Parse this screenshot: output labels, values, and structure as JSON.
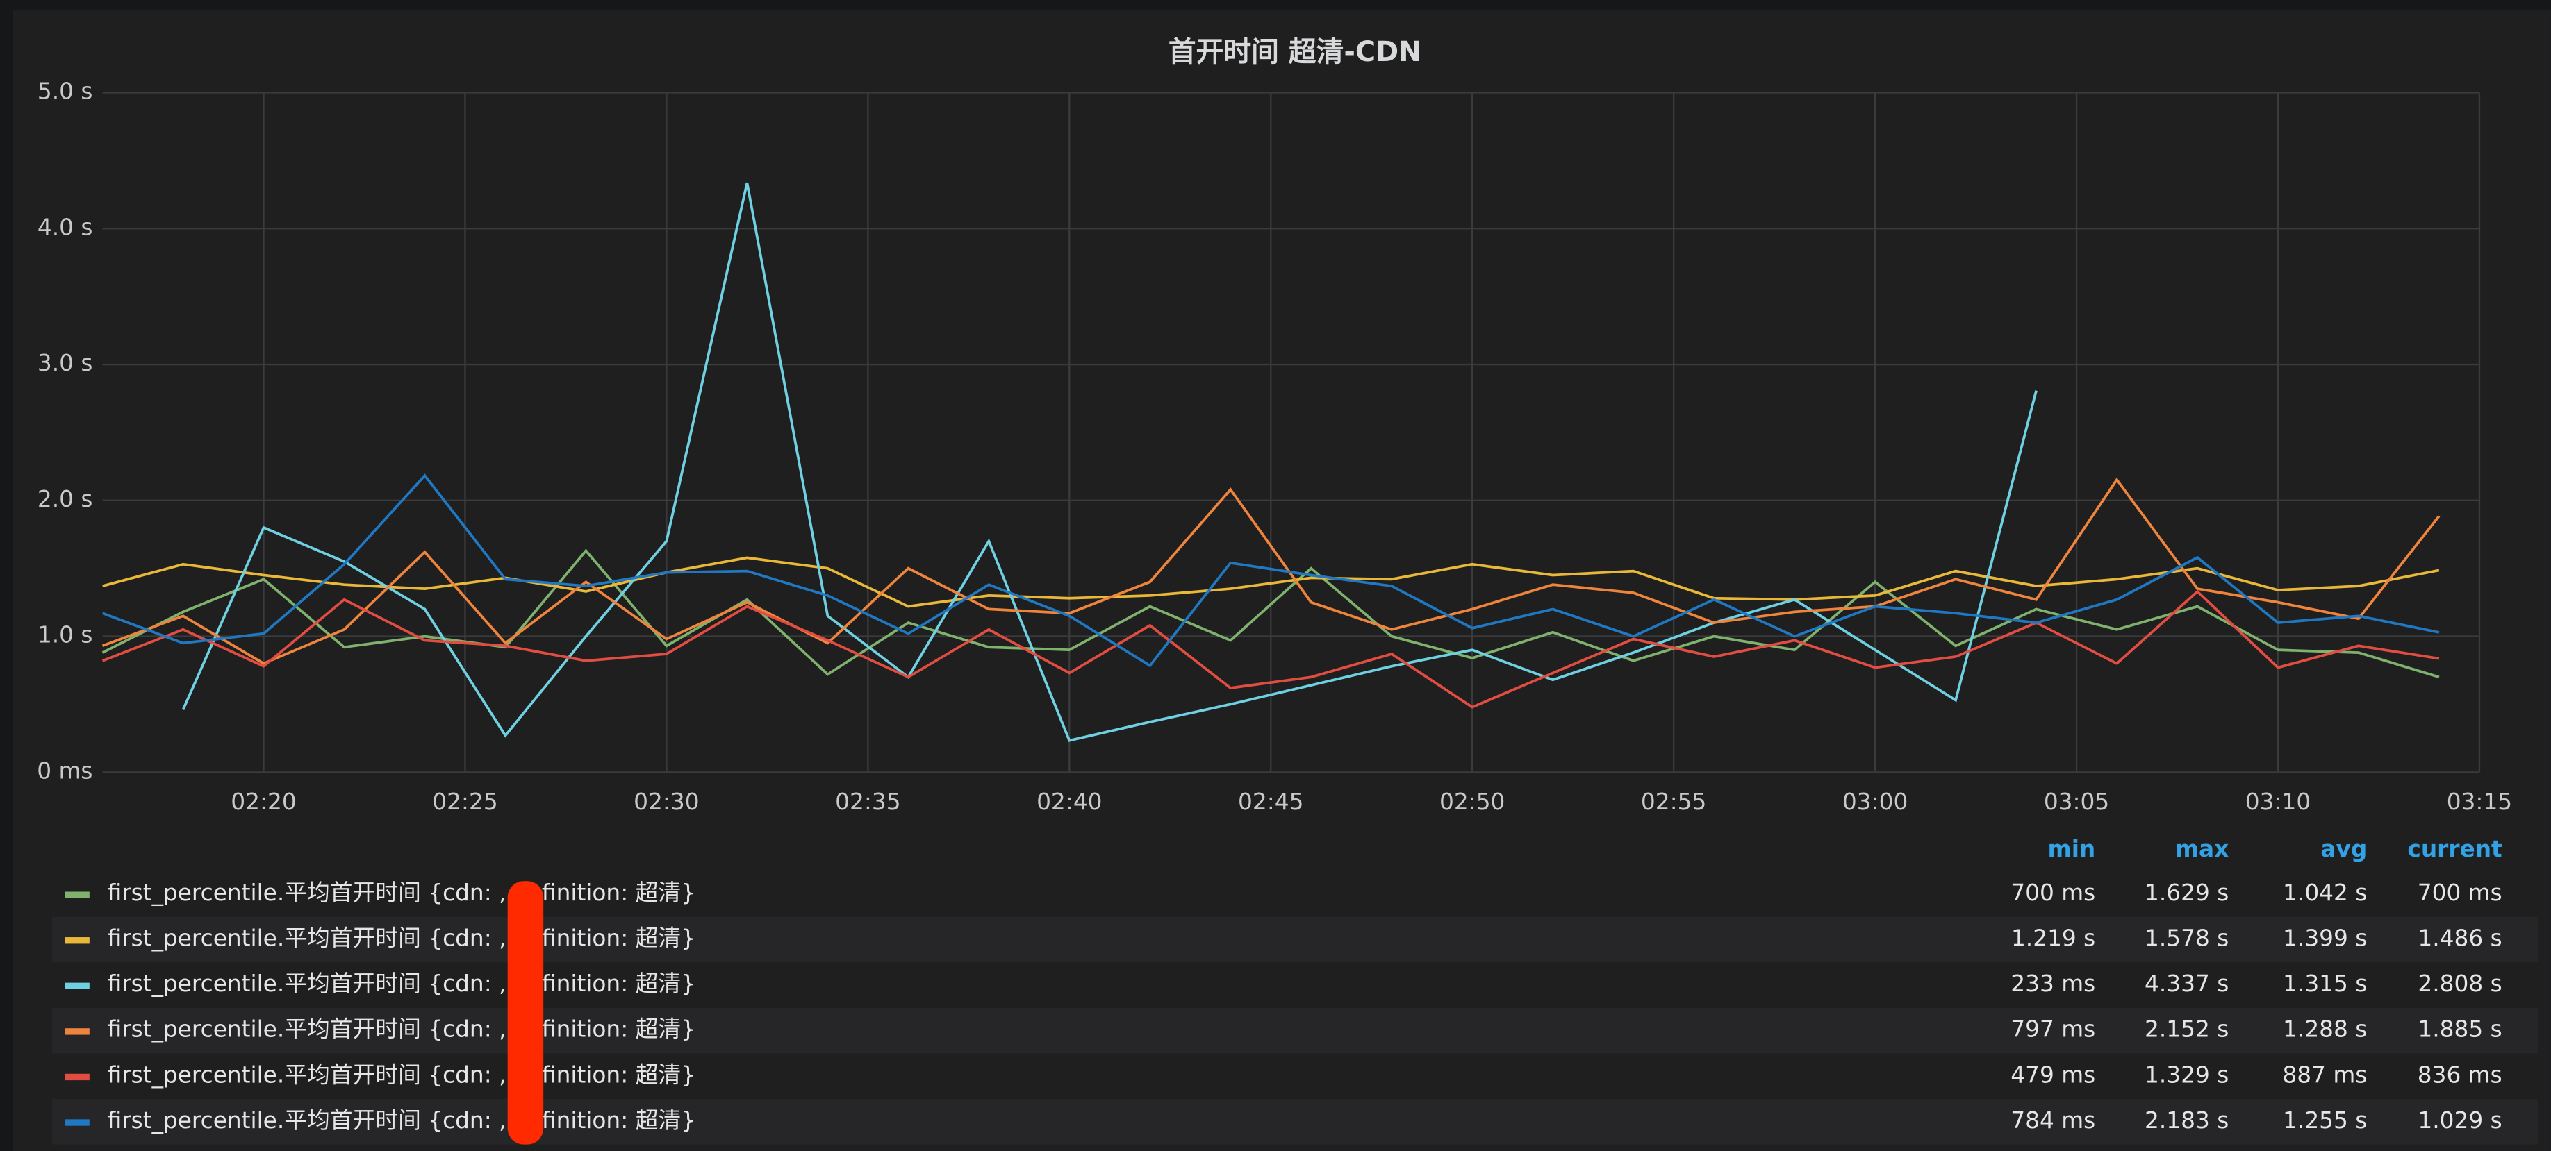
{
  "chart_data": {
    "type": "line",
    "title": "首开时间 超清-CDN",
    "x": [
      "02:16",
      "02:18",
      "02:20",
      "02:22",
      "02:24",
      "02:26",
      "02:28",
      "02:30",
      "02:32",
      "02:34",
      "02:36",
      "02:38",
      "02:40",
      "02:42",
      "02:44",
      "02:46",
      "02:48",
      "02:50",
      "02:52",
      "02:54",
      "02:56",
      "02:58",
      "03:00",
      "03:02",
      "03:04",
      "03:06",
      "03:08",
      "03:10",
      "03:12",
      "03:14"
    ],
    "xlim": [
      "02:16",
      "03:15"
    ],
    "xticks": [
      "02:20",
      "02:25",
      "02:30",
      "02:35",
      "02:40",
      "02:45",
      "02:50",
      "02:55",
      "03:00",
      "03:05",
      "03:10",
      "03:15"
    ],
    "ylim": [
      0,
      5
    ],
    "yticks": [
      {
        "value": 0,
        "label": "0 ms"
      },
      {
        "value": 1,
        "label": "1.0 s"
      },
      {
        "value": 2,
        "label": "2.0 s"
      },
      {
        "value": 3,
        "label": "3.0 s"
      },
      {
        "value": 4,
        "label": "4.0 s"
      },
      {
        "value": 5,
        "label": "5.0 s"
      }
    ],
    "grid": true,
    "series": [
      {
        "name": "first_percentile.平均首开时间 {cdn: , definition: 超清}",
        "color": "#7eb26d",
        "values": [
          0.88,
          1.18,
          1.42,
          0.92,
          1.0,
          0.92,
          1.63,
          0.93,
          1.27,
          0.72,
          1.1,
          0.92,
          0.9,
          1.22,
          0.97,
          1.5,
          1.0,
          0.84,
          1.03,
          0.82,
          1.0,
          0.9,
          1.4,
          0.93,
          1.2,
          1.05,
          1.22,
          0.9,
          0.88,
          0.7
        ]
      },
      {
        "name": "first_percentile.平均首开时间 {cdn: , definition: 超清}",
        "color": "#eab839",
        "values": [
          1.37,
          1.53,
          1.45,
          1.38,
          1.35,
          1.43,
          1.33,
          1.47,
          1.578,
          1.5,
          1.22,
          1.3,
          1.28,
          1.3,
          1.35,
          1.43,
          1.42,
          1.53,
          1.45,
          1.48,
          1.28,
          1.27,
          1.3,
          1.48,
          1.37,
          1.42,
          1.5,
          1.34,
          1.37,
          1.486
        ]
      },
      {
        "name": "first_percentile.平均首开时间 {cdn: , definition: 超清}",
        "color": "#6ed0e0",
        "values": [
          null,
          0.46,
          1.8,
          1.55,
          1.2,
          0.27,
          1.0,
          1.7,
          4.337,
          1.15,
          0.7,
          1.7,
          0.233,
          0.37,
          0.5,
          0.64,
          0.78,
          0.9,
          0.68,
          0.88,
          1.1,
          1.27,
          0.9,
          0.53,
          2.808,
          null,
          null,
          null,
          null,
          null
        ]
      },
      {
        "name": "first_percentile.平均首开时间 {cdn: , definition: 超清}",
        "color": "#ef843c",
        "values": [
          0.93,
          1.15,
          0.8,
          1.05,
          1.62,
          0.95,
          1.4,
          0.98,
          1.25,
          0.95,
          1.5,
          1.2,
          1.17,
          1.4,
          2.08,
          1.25,
          1.05,
          1.2,
          1.38,
          1.32,
          1.1,
          1.18,
          1.22,
          1.42,
          1.27,
          2.152,
          1.35,
          1.25,
          1.13,
          1.885
        ]
      },
      {
        "name": "first_percentile.平均首开时间 {cdn: , definition: 超清}",
        "color": "#e24d42",
        "values": [
          0.82,
          1.05,
          0.78,
          1.27,
          0.97,
          0.93,
          0.82,
          0.87,
          1.22,
          0.97,
          0.7,
          1.05,
          0.73,
          1.08,
          0.62,
          0.7,
          0.87,
          0.479,
          0.73,
          0.98,
          0.85,
          0.97,
          0.77,
          0.85,
          1.1,
          0.8,
          1.329,
          0.77,
          0.93,
          0.836
        ]
      },
      {
        "name": "first_percentile.平均首开时间 {cdn: , definition: 超清}",
        "color": "#1f78c1",
        "values": [
          1.17,
          0.95,
          1.02,
          1.53,
          2.183,
          1.42,
          1.37,
          1.47,
          1.48,
          1.3,
          1.02,
          1.38,
          1.15,
          0.784,
          1.54,
          1.45,
          1.37,
          1.06,
          1.2,
          1.0,
          1.27,
          1.0,
          1.22,
          1.17,
          1.1,
          1.27,
          1.58,
          1.1,
          1.15,
          1.029
        ]
      }
    ],
    "legend": {
      "headers": [
        "min",
        "max",
        "avg",
        "current"
      ],
      "rows": [
        [
          "700 ms",
          "1.629 s",
          "1.042 s",
          "700 ms"
        ],
        [
          "1.219 s",
          "1.578 s",
          "1.399 s",
          "1.486 s"
        ],
        [
          "233 ms",
          "4.337 s",
          "1.315 s",
          "2.808 s"
        ],
        [
          "797 ms",
          "2.152 s",
          "1.288 s",
          "1.885 s"
        ],
        [
          "479 ms",
          "1.329 s",
          "887 ms",
          "836 ms"
        ],
        [
          "784 ms",
          "2.183 s",
          "1.255 s",
          "1.029 s"
        ]
      ]
    }
  }
}
